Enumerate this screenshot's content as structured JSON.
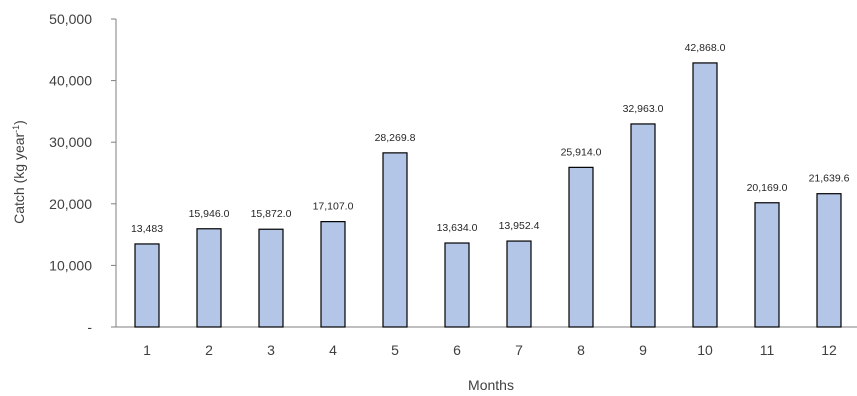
{
  "chart_data": {
    "type": "bar",
    "title": "",
    "xlabel": "Months",
    "ylabel_main": "Catch (kg year",
    "ylabel_sup": "-1",
    "ylabel_close": ")",
    "ylim": [
      0,
      50000
    ],
    "yticks": [
      0,
      10000,
      20000,
      30000,
      40000,
      50000
    ],
    "ytick_labels": [
      "-",
      "10,000",
      "20,000",
      "30,000",
      "40,000",
      "50,000"
    ],
    "categories": [
      "1",
      "2",
      "3",
      "4",
      "5",
      "6",
      "7",
      "8",
      "9",
      "10",
      "11",
      "12"
    ],
    "values": [
      13483,
      15946.0,
      15872.0,
      17107.0,
      28269.8,
      13634.0,
      13952.4,
      25914.0,
      32963.0,
      42868.0,
      20169.0,
      21639.6
    ],
    "data_labels": [
      "13,483",
      "15,946.0",
      "15,872.0",
      "17,107.0",
      "28,269.8",
      "13,634.0",
      "13,952.4",
      "25,914.0",
      "32,963.0",
      "42,868.0",
      "20,169.0",
      "21,639.6"
    ],
    "bar_color": "#b4c6e7",
    "grid": false,
    "legend": "none"
  }
}
